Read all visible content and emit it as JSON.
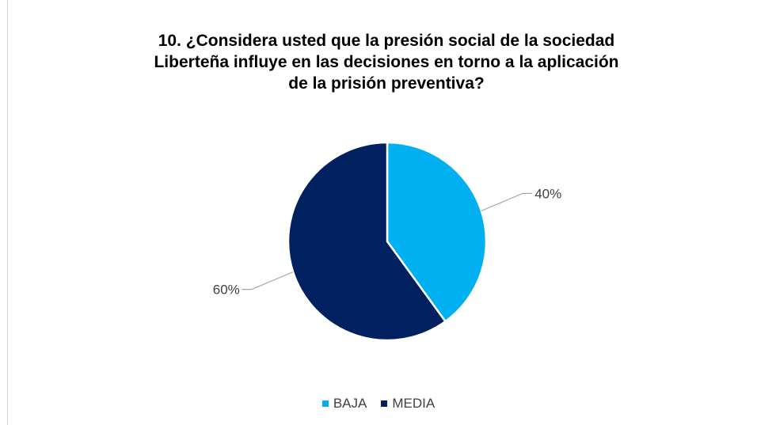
{
  "chart_data": {
    "type": "pie",
    "title_lines": [
      "10. ¿Considera usted que la presión social de la sociedad",
      "Liberteña influye en las decisiones en torno a la aplicación",
      "de la prisión preventiva?"
    ],
    "slices": [
      {
        "label": "BAJA",
        "value": 40,
        "display": "40%",
        "color": "#00b0f0"
      },
      {
        "label": "MEDIA",
        "value": 60,
        "display": "60%",
        "color": "#002060"
      }
    ],
    "legend_position": "bottom"
  }
}
